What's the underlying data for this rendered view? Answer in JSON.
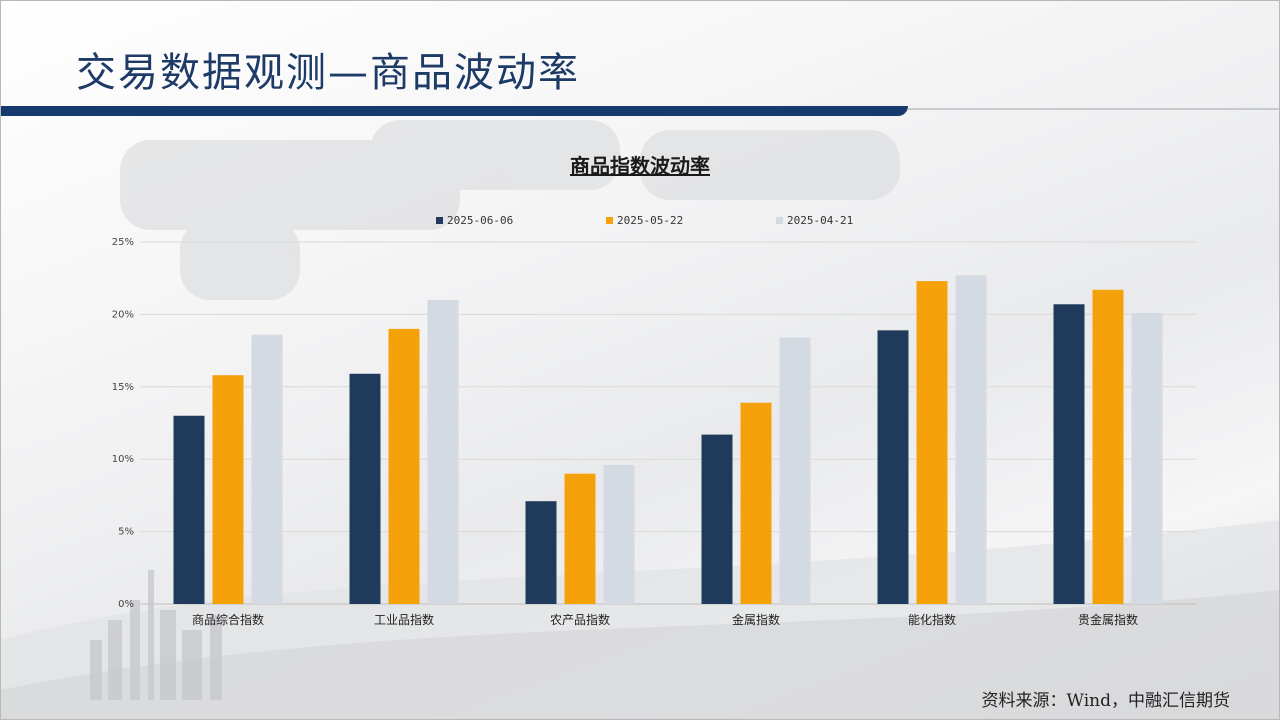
{
  "page": {
    "title": "交易数据观测—商品波动率",
    "source": "资料来源：Wind，中融汇信期货"
  },
  "colors": {
    "title": "#1e3a66",
    "title_bar": "#163a6e"
  },
  "chart_data": {
    "type": "bar",
    "title": "商品指数波动率",
    "xlabel": "",
    "ylabel": "",
    "categories": [
      "商品综合指数",
      "工业品指数",
      "农产品指数",
      "金属指数",
      "能化指数",
      "贵金属指数"
    ],
    "series": [
      {
        "name": "2025-06-06",
        "color": "#1f3a5a",
        "values": [
          13.0,
          15.9,
          7.1,
          11.7,
          18.9,
          20.7
        ]
      },
      {
        "name": "2025-05-22",
        "color": "#f5a10a",
        "values": [
          15.8,
          19.0,
          9.0,
          13.9,
          22.3,
          21.7
        ]
      },
      {
        "name": "2025-04-21",
        "color": "#d4dae2",
        "values": [
          18.6,
          21.0,
          9.6,
          18.4,
          22.7,
          20.1
        ]
      }
    ],
    "ylim": [
      0,
      25
    ],
    "yticks": [
      "0%",
      "5%",
      "10%",
      "15%",
      "20%",
      "25%"
    ],
    "legend_position": "top",
    "grid": true
  }
}
